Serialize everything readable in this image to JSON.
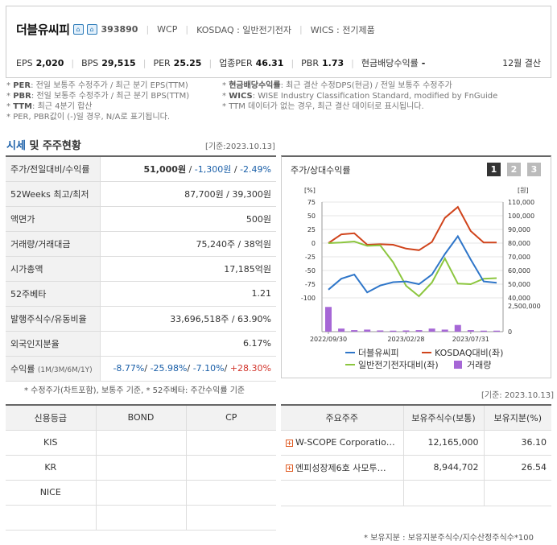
{
  "header": {
    "company_name": "더블유씨피",
    "code": "393890",
    "ticker": "WCP",
    "market": "KOSDAQ : 일반전기전자",
    "wics": "WICS : 전기제품",
    "metrics": [
      {
        "label": "EPS",
        "value": "2,020"
      },
      {
        "label": "BPS",
        "value": "29,515"
      },
      {
        "label": "PER",
        "value": "25.25"
      },
      {
        "label": "업종PER",
        "value": "46.31"
      },
      {
        "label": "PBR",
        "value": "1.73"
      },
      {
        "label": "현금배당수익률",
        "value": "-"
      }
    ],
    "settlement": "12월 결산"
  },
  "notes": {
    "left": [
      {
        "key": "PER",
        "text": ": 전일 보통주 수정주가 / 최근 분기 EPS(TTM)"
      },
      {
        "key": "PBR",
        "text": ": 전일 보통주 수정주가 / 최근 분기 BPS(TTM)"
      },
      {
        "key": "TTM",
        "text": ": 최근 4분기 합산"
      },
      {
        "key": "",
        "text": "PER, PBR값이 (-)일 경우, N/A로 표기됩니다."
      }
    ],
    "right": [
      {
        "key": "현금배당수익률",
        "text": ": 최근 결산 수정DPS(현금) / 전일 보통주 수정주가"
      },
      {
        "key": "WICS",
        "text": ": WISE Industry Classification Standard, modified by FnGuide"
      },
      {
        "key": "",
        "text": "TTM 데이터가 없는 경우, 최근 결산 데이터로 표시됩니다."
      }
    ]
  },
  "section": {
    "title_a": "시세",
    "title_b": " 및 주주현황",
    "date": "[기준:2023.10.13]"
  },
  "info_rows": [
    {
      "label": "주가/전일대비/수익률",
      "v1": "51,000원",
      "v2": "-1,300원",
      "v3": "-2.49%"
    },
    {
      "label": "52Weeks 최고/최저",
      "value": "87,700원 / 39,300원"
    },
    {
      "label": "액면가",
      "value": "500원"
    },
    {
      "label": "거래량/거래대금",
      "value": "75,240주 / 38억원"
    },
    {
      "label": "시가총액",
      "value": "17,185억원"
    },
    {
      "label": "52주베타",
      "value": "1.21"
    },
    {
      "label": "발행주식수/유동비율",
      "value": "33,696,518주 / 63.90%"
    },
    {
      "label": "외국인지분율",
      "value": "6.17%"
    },
    {
      "label": "수익률",
      "sub": "(1M/3M/6M/1Y)",
      "r1": "-8.77%",
      "r2": "-25.98%",
      "r3": "-7.10%",
      "r4": "+28.30%"
    }
  ],
  "left_note": "* 수정주가(차트포함), 보통주 기준, * 52주베타: 주간수익률 기준",
  "chart_panel": {
    "title": "주가/상대수익률",
    "pages": [
      "1",
      "2",
      "3"
    ],
    "left_unit": "[%]",
    "right_unit": "[원]",
    "left_ticks": [
      "75",
      "50",
      "25",
      "0",
      "-25",
      "-50",
      "-75",
      "-100"
    ],
    "right_ticks": [
      "110,000",
      "100,000",
      "90,000",
      "80,000",
      "70,000",
      "60,000",
      "50,000",
      "40,000"
    ],
    "vol_ticks": [
      "2,500,000",
      "0"
    ],
    "x_labels": [
      "2022/09/30",
      "2023/02/28",
      "2023/07/31"
    ],
    "legend": [
      "더블유씨피",
      "KOSDAQ대비(좌)",
      "일반전기전자대비(좌)",
      "거래량"
    ],
    "colors": {
      "stock": "#2f76c9",
      "kosdaq": "#d0441c",
      "sector": "#8cc63f",
      "volume": "#a667d6"
    }
  },
  "chart_data": {
    "type": "line",
    "x": [
      "2022/09/30",
      "",
      "",
      "",
      "",
      "",
      "2023/02/28",
      "",
      "",
      "",
      "",
      "2023/07/31",
      "",
      ""
    ],
    "series": [
      {
        "name": "더블유씨피",
        "axis": "right",
        "values": [
          46000,
          54000,
          57000,
          44000,
          49000,
          51500,
          52000,
          50000,
          57000,
          72000,
          85000,
          68000,
          52000,
          51000
        ]
      },
      {
        "name": "KOSDAQ대비(좌)",
        "axis": "left",
        "values": [
          0,
          16,
          18,
          -3,
          -2,
          -3,
          -10,
          -13,
          2,
          46,
          66,
          22,
          1,
          1
        ]
      },
      {
        "name": "일반전기전자대비(좌)",
        "axis": "left",
        "values": [
          0,
          1,
          3,
          -5,
          -4,
          -35,
          -78,
          -97,
          -72,
          -28,
          -74,
          -75,
          -65,
          -64
        ]
      },
      {
        "name": "거래량",
        "axis": "volume",
        "values": [
          2400000,
          300000,
          150000,
          200000,
          120000,
          100000,
          120000,
          150000,
          300000,
          200000,
          650000,
          150000,
          100000,
          100000
        ]
      }
    ],
    "ylim_left": [
      -100,
      75
    ],
    "ylim_right": [
      40000,
      110000
    ],
    "ylim_volume": [
      0,
      2500000
    ]
  },
  "right_date": "[기준: 2023.10.13]",
  "credit": {
    "headers": [
      "신용등급",
      "BOND",
      "CP"
    ],
    "rows": [
      "KIS",
      "KR",
      "NICE",
      ""
    ]
  },
  "holders": {
    "headers": [
      "주요주주",
      "보유주식수(보통)",
      "보유지분(%)"
    ],
    "rows": [
      {
        "name": "W-SCOPE Corporatio…",
        "shares": "12,165,000",
        "pct": "36.10"
      },
      {
        "name": "엔피성장제6호 사모투…",
        "shares": "8,944,702",
        "pct": "26.54"
      },
      {
        "name": "",
        "shares": "",
        "pct": ""
      }
    ]
  },
  "bottom_note": "* 보유지분 : 보유지분주식수/지수산정주식수*100"
}
